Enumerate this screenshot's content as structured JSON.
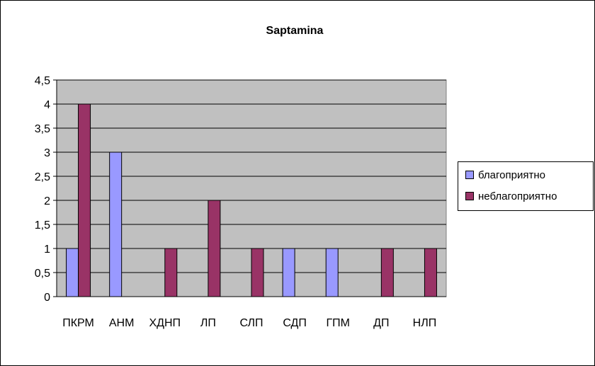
{
  "chart_data": {
    "type": "bar",
    "title": "Saptamina",
    "xlabel": "",
    "ylabel": "",
    "categories": [
      "ПКРМ",
      "АНМ",
      "ХДНП",
      "ЛП",
      "СЛП",
      "СДП",
      "ГПМ",
      "ДП",
      "НЛП"
    ],
    "series": [
      {
        "name": "благоприятно",
        "color": "#9999ff",
        "values": [
          1,
          3,
          0,
          0,
          0,
          1,
          1,
          0,
          0
        ]
      },
      {
        "name": "неблагоприятно",
        "color": "#993366",
        "values": [
          4,
          0,
          1,
          2,
          1,
          0,
          0,
          1,
          1
        ]
      }
    ],
    "ylim": [
      0,
      4.5
    ],
    "yticks": [
      "0",
      "0,5",
      "1",
      "1,5",
      "2",
      "2,5",
      "3",
      "3,5",
      "4",
      "4,5"
    ],
    "grid": true,
    "plot_background": "#c0c0c0",
    "legend_position": "right"
  }
}
